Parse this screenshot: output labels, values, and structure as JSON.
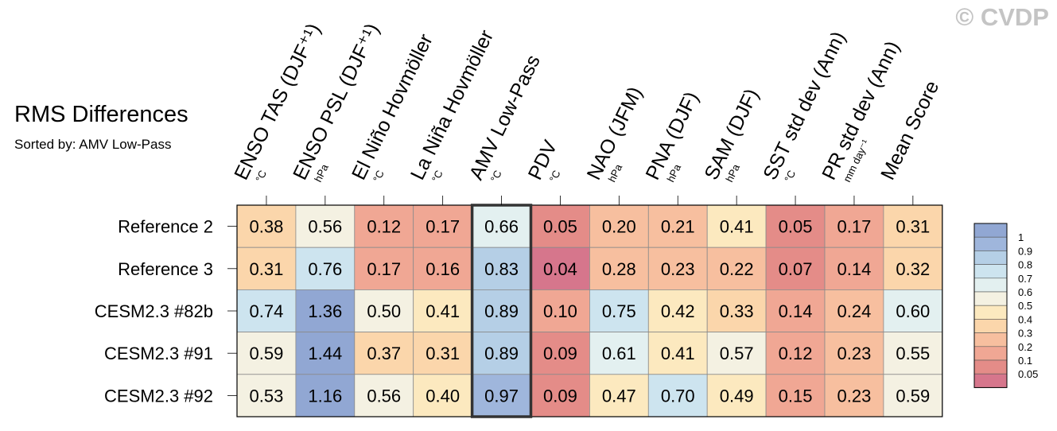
{
  "watermark": "© CVDP",
  "chart_data": {
    "type": "heatmap",
    "title": "RMS Differences",
    "subtitle": "Sorted by: AMV Low-Pass",
    "columns": [
      {
        "label": "ENSO TAS (DJF⁺¹)",
        "unit": "°C"
      },
      {
        "label": "ENSO PSL (DJF⁺¹)",
        "unit": "hPa"
      },
      {
        "label": "El Niño Hovmöller",
        "unit": "°C"
      },
      {
        "label": "La Niña Hovmöller",
        "unit": "°C"
      },
      {
        "label": "AMV Low-Pass",
        "unit": "°C"
      },
      {
        "label": "PDV",
        "unit": "°C"
      },
      {
        "label": "NAO (JFM)",
        "unit": "hPa"
      },
      {
        "label": "PNA (DJF)",
        "unit": "hPa"
      },
      {
        "label": "SAM (DJF)",
        "unit": "hPa"
      },
      {
        "label": "SST std dev (Ann)",
        "unit": "°C"
      },
      {
        "label": "PR std dev (Ann)",
        "unit": "mm day⁻¹"
      },
      {
        "label": "Mean Score",
        "unit": ""
      }
    ],
    "rows": [
      "Reference 2",
      "Reference 3",
      "CESM2.3 #82b",
      "CESM2.3 #91",
      "CESM2.3 #92"
    ],
    "values": [
      [
        "0.38",
        "0.56",
        "0.12",
        "0.17",
        "0.66",
        "0.05",
        "0.20",
        "0.21",
        "0.41",
        "0.05",
        "0.17",
        "0.31"
      ],
      [
        "0.31",
        "0.76",
        "0.17",
        "0.16",
        "0.83",
        "0.04",
        "0.28",
        "0.23",
        "0.22",
        "0.07",
        "0.14",
        "0.32"
      ],
      [
        "0.74",
        "1.36",
        "0.50",
        "0.41",
        "0.89",
        "0.10",
        "0.75",
        "0.42",
        "0.33",
        "0.14",
        "0.24",
        "0.60"
      ],
      [
        "0.59",
        "1.44",
        "0.37",
        "0.31",
        "0.89",
        "0.09",
        "0.61",
        "0.41",
        "0.57",
        "0.12",
        "0.23",
        "0.55"
      ],
      [
        "0.53",
        "1.16",
        "0.56",
        "0.40",
        "0.97",
        "0.09",
        "0.47",
        "0.70",
        "0.49",
        "0.15",
        "0.23",
        "0.59"
      ]
    ],
    "highlighted_column": "AMV Low-Pass",
    "colorbar": {
      "levels": [
        "0.05",
        "0.1",
        "0.2",
        "0.3",
        "0.4",
        "0.5",
        "0.6",
        "0.7",
        "0.8",
        "0.9",
        "1"
      ],
      "colors": [
        "#d6768c",
        "#e48c88",
        "#f0a794",
        "#f7bf9f",
        "#fbd6ab",
        "#fce9bf",
        "#f4f1e2",
        "#e3f0f0",
        "#cde4ef",
        "#b5cfe6",
        "#9fb6dc",
        "#91a7d3"
      ]
    }
  }
}
